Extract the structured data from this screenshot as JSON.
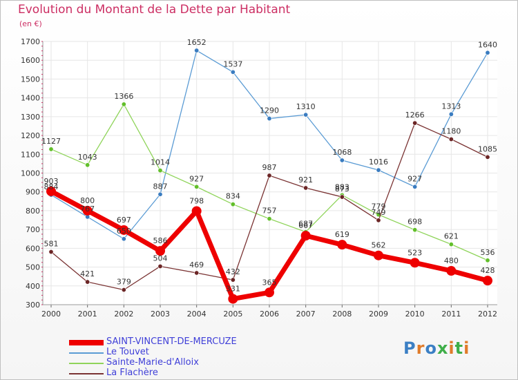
{
  "header": {
    "title": "Evolution du Montant de la Dette par Habitant",
    "subtitle": "(en €)"
  },
  "logo": {
    "text": "Proxiti",
    "colors": [
      "#3b7fc4",
      "#e07b2a",
      "#3b7fc4",
      "#3fae49",
      "#e07b2a",
      "#3fae49",
      "#e07b2a"
    ]
  },
  "chart_data": {
    "type": "line",
    "title": "Evolution du Montant de la Dette par Habitant",
    "ylabel": "(en €)",
    "xlabel": "",
    "x": [
      "2000",
      "2001",
      "2002",
      "2003",
      "2004",
      "2005",
      "2006",
      "2007",
      "2008",
      "2009",
      "2010",
      "2011",
      "2012"
    ],
    "ylim": [
      300,
      1700
    ],
    "yticks": [
      300,
      400,
      500,
      600,
      700,
      800,
      900,
      1000,
      1100,
      1200,
      1300,
      1400,
      1500,
      1600,
      1700
    ],
    "grid": true,
    "legend_position": "bottom-left",
    "series": [
      {
        "name": "Le Touvet",
        "color": "#5a9bd4",
        "marker": "#3a7cc0",
        "values": [
          884,
          767,
          650,
          887,
          1652,
          1537,
          1290,
          1310,
          1068,
          1016,
          927,
          1313,
          1640
        ]
      },
      {
        "name": "Sainte-Marie-d'Alloix",
        "color": "#8fd45a",
        "marker": "#62bf2a",
        "values": [
          1127,
          1043,
          1366,
          1014,
          927,
          834,
          757,
          687,
          883,
          779,
          698,
          621,
          536
        ]
      },
      {
        "name": "La Flachère",
        "color": "#7a3333",
        "marker": "#6b2525",
        "values": [
          581,
          421,
          379,
          504,
          469,
          432,
          987,
          921,
          873,
          749,
          1266,
          1180,
          1085
        ]
      },
      {
        "name": "SAINT-VINCENT-DE-MERCUZE",
        "color": "#ee0000",
        "marker": "#ee0000",
        "values": [
          903,
          800,
          697,
          586,
          798,
          331,
          365,
          667,
          619,
          562,
          523,
          480,
          428
        ]
      }
    ],
    "value_labels": [
      [
        "884",
        "767",
        "650",
        "887",
        "1652",
        "1537",
        "1290",
        "1310",
        "1068",
        "1016",
        "927",
        "1313",
        "1640"
      ],
      [
        "1127",
        "1043",
        "1366",
        "1014",
        "927",
        "834",
        "757",
        "687",
        "883",
        "779",
        "698",
        "621",
        "536"
      ],
      [
        "581",
        "421",
        "379",
        "504",
        "469",
        "432",
        "987",
        "921",
        "873",
        "749",
        "1266",
        "1180",
        "1085"
      ],
      [
        "903",
        "800",
        "697",
        "586",
        "798",
        "331",
        "365",
        "667",
        "619",
        "562",
        "523",
        "480",
        "428"
      ]
    ],
    "legend_order": [
      "SAINT-VINCENT-DE-MERCUZE",
      "Le Touvet",
      "Sainte-Marie-d'Alloix",
      "La Flachère"
    ],
    "legend_label_colors": {
      "SAINT-VINCENT-DE-MERCUZE": "#3f3fd8",
      "Le Touvet": "#3f3fd8",
      "Sainte-Marie-d'Alloix": "#3f3fd8",
      "La Flachère": "#3f3fd8"
    }
  }
}
